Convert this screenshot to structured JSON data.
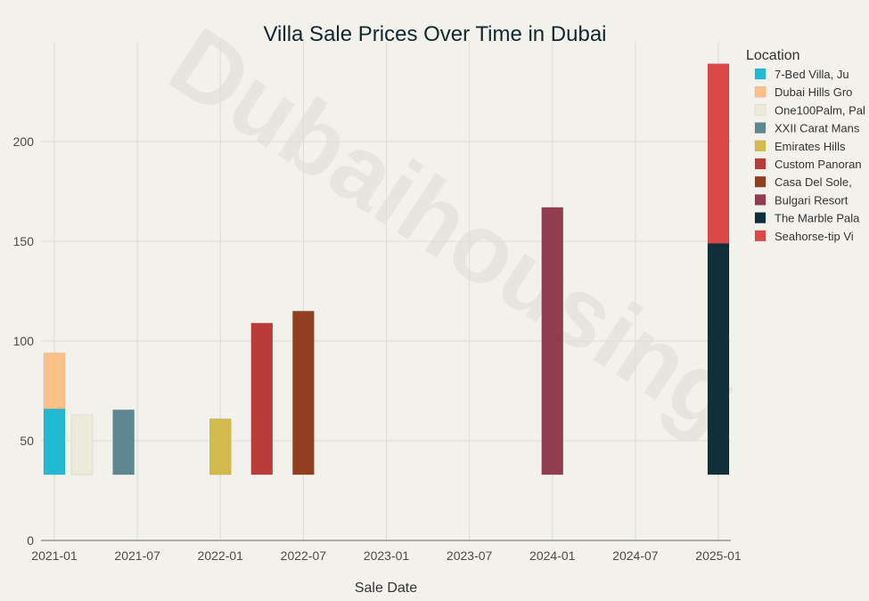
{
  "chart_data": {
    "type": "bar",
    "title": "Villa Sale Prices Over Time in Dubai",
    "xlabel": "Sale Date",
    "ylabel": "",
    "watermark": "Dubaihousing",
    "x_ticks": [
      "2021-01",
      "2021-07",
      "2022-01",
      "2022-07",
      "2023-01",
      "2023-07",
      "2024-01",
      "2024-07",
      "2025-01"
    ],
    "y_ticks": [
      0,
      50,
      100,
      150,
      200
    ],
    "ylim": [
      0,
      250
    ],
    "bar_base": 33,
    "legend_title": "Location",
    "legend_position": "right",
    "series": [
      {
        "name": "7-Bed Villa, Ju",
        "color": "#22b9d3",
        "date": "2021-01",
        "value": 33
      },
      {
        "name": "Dubai Hills Gro",
        "color": "#fdc089",
        "date": "2021-01",
        "value": 28
      },
      {
        "name": "One100Palm, Pal",
        "color": "#ecebdb",
        "date": "2021-03",
        "value": 30
      },
      {
        "name": "XXII Carat Mans",
        "color": "#5e8791",
        "date": "2021-06",
        "value": 32.5
      },
      {
        "name": "Emirates Hills",
        "color": "#d1bb4c",
        "date": "2022-01",
        "value": 28
      },
      {
        "name": "Custom Panoran",
        "color": "#b93c3a",
        "date": "2022-04",
        "value": 76
      },
      {
        "name": "Casa Del Sole,",
        "color": "#923e20",
        "date": "2022-07",
        "value": 82
      },
      {
        "name": "Bulgari Resort",
        "color": "#913d50",
        "date": "2024-01",
        "value": 134
      },
      {
        "name": "The Marble Pala",
        "color": "#112f38",
        "date": "2025-01",
        "value": 116
      },
      {
        "name": "Seahorse-tip Vi",
        "color": "#db4646",
        "date": "2025-01",
        "value": 90
      }
    ]
  }
}
